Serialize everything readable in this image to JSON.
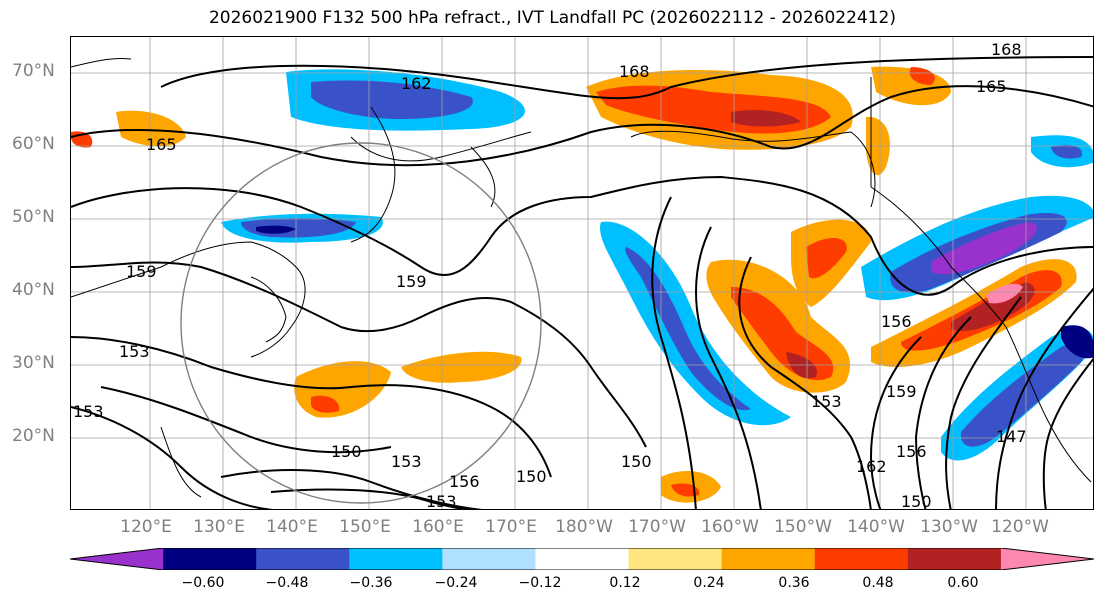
{
  "title": "2026021900 F132 500 hPa refract., IVT Landfall PC (2026022112 - 2026022412)",
  "lat_labels": [
    "70°N",
    "60°N",
    "50°N",
    "40°N",
    "30°N",
    "20°N"
  ],
  "lon_labels": [
    "120°E",
    "130°E",
    "140°E",
    "150°E",
    "160°E",
    "170°E",
    "180°W",
    "170°W",
    "160°W",
    "150°W",
    "140°W",
    "130°W",
    "120°W"
  ],
  "contour_labels": [
    "168",
    "162",
    "165",
    "165",
    "168",
    "159",
    "159",
    "153",
    "150",
    "153",
    "150",
    "153",
    "156",
    "150",
    "153",
    "147",
    "156",
    "159",
    "162",
    "156",
    "150",
    "153"
  ],
  "colorbar": {
    "ticks": [
      "−0.60",
      "−0.48",
      "−0.36",
      "−0.24",
      "−0.12",
      "0.12",
      "0.24",
      "0.36",
      "0.48",
      "0.60"
    ],
    "colors": [
      "#9932cc",
      "#000080",
      "#3a52c8",
      "#00bfff",
      "#b0e0ff",
      "#ffffff",
      "#ffe680",
      "#ffa500",
      "#ff3c00",
      "#b22222",
      "#ff88b0"
    ]
  },
  "colors": {
    "frame": "#000000",
    "grid": "#a0a0a0",
    "coast": "#000000",
    "contour": "#000000",
    "circle": "#7f7f7f"
  }
}
